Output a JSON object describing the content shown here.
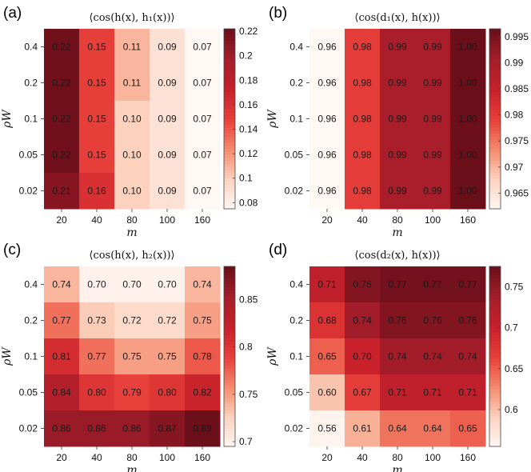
{
  "chart_data": [
    {
      "panel": "(a)",
      "type": "heatmap",
      "title": "⟨cos(h(x), h₁(x))⟩",
      "xlabel": "m",
      "ylabel": "ρW",
      "x": [
        "20",
        "40",
        "80",
        "100",
        "160"
      ],
      "y": [
        "0.4",
        "0.2",
        "0.1",
        "0.05",
        "0.02"
      ],
      "values": [
        [
          0.22,
          0.15,
          0.11,
          0.09,
          0.07
        ],
        [
          0.22,
          0.15,
          0.11,
          0.09,
          0.07
        ],
        [
          0.22,
          0.15,
          0.1,
          0.09,
          0.07
        ],
        [
          0.22,
          0.15,
          0.1,
          0.09,
          0.07
        ],
        [
          0.21,
          0.16,
          0.1,
          0.09,
          0.07
        ]
      ],
      "cell_labels": [
        [
          "0.22",
          "0.15",
          "0.11",
          "0.09",
          "0.07"
        ],
        [
          "0.22",
          "0.15",
          "0.11",
          "0.09",
          "0.07"
        ],
        [
          "0.22",
          "0.15",
          "0.10",
          "0.09",
          "0.07"
        ],
        [
          "0.22",
          "0.15",
          "0.10",
          "0.09",
          "0.07"
        ],
        [
          "0.21",
          "0.16",
          "0.10",
          "0.09",
          "0.07"
        ]
      ],
      "colorbar": {
        "range": [
          0.075,
          0.222
        ],
        "ticks": [
          "0.22",
          "0.2",
          "0.18",
          "0.16",
          "0.14",
          "0.12",
          "0.1",
          "0.08"
        ],
        "tick_values": [
          0.22,
          0.2,
          0.18,
          0.16,
          0.14,
          0.12,
          0.1,
          0.08
        ]
      }
    },
    {
      "panel": "(b)",
      "type": "heatmap",
      "title": "⟨cos(d₁(x), h(x))⟩",
      "xlabel": "m",
      "ylabel": "ρW",
      "x": [
        "20",
        "40",
        "80",
        "100",
        "160"
      ],
      "y": [
        "0.4",
        "0.2",
        "0.1",
        "0.05",
        "0.02"
      ],
      "values": [
        [
          0.96,
          0.98,
          0.99,
          0.99,
          1.0
        ],
        [
          0.96,
          0.98,
          0.99,
          0.99,
          1.0
        ],
        [
          0.96,
          0.98,
          0.99,
          0.99,
          1.0
        ],
        [
          0.96,
          0.98,
          0.99,
          0.99,
          1.0
        ],
        [
          0.96,
          0.98,
          0.99,
          0.99,
          1.0
        ]
      ],
      "cell_labels": [
        [
          "0.96",
          "0.98",
          "0.99",
          "0.99",
          "1.00"
        ],
        [
          "0.96",
          "0.98",
          "0.99",
          "0.99",
          "1.00"
        ],
        [
          "0.96",
          "0.98",
          "0.99",
          "0.99",
          "1.00"
        ],
        [
          "0.96",
          "0.98",
          "0.99",
          "0.99",
          "1.00"
        ],
        [
          "0.96",
          "0.98",
          "0.99",
          "0.99",
          "1.00"
        ]
      ],
      "colorbar": {
        "range": [
          0.962,
          0.9965
        ],
        "ticks": [
          "0.995",
          "0.99",
          "0.985",
          "0.98",
          "0.975",
          "0.97",
          "0.965"
        ],
        "tick_values": [
          0.995,
          0.99,
          0.985,
          0.98,
          0.975,
          0.97,
          0.965
        ]
      }
    },
    {
      "panel": "(c)",
      "type": "heatmap",
      "title": "⟨cos(h(x), h₂(x))⟩",
      "xlabel": "m",
      "ylabel": "ρW",
      "x": [
        "20",
        "40",
        "80",
        "100",
        "160"
      ],
      "y": [
        "0.4",
        "0.2",
        "0.1",
        "0.05",
        "0.02"
      ],
      "values": [
        [
          0.74,
          0.7,
          0.7,
          0.7,
          0.74
        ],
        [
          0.77,
          0.73,
          0.72,
          0.72,
          0.75
        ],
        [
          0.81,
          0.77,
          0.75,
          0.75,
          0.78
        ],
        [
          0.84,
          0.8,
          0.79,
          0.8,
          0.82
        ],
        [
          0.86,
          0.86,
          0.86,
          0.87,
          0.89
        ]
      ],
      "cell_labels": [
        [
          "0.74",
          "0.70",
          "0.70",
          "0.70",
          "0.74"
        ],
        [
          "0.77",
          "0.73",
          "0.72",
          "0.72",
          "0.75"
        ],
        [
          "0.81",
          "0.77",
          "0.75",
          "0.75",
          "0.78"
        ],
        [
          "0.84",
          "0.80",
          "0.79",
          "0.80",
          "0.82"
        ],
        [
          "0.86",
          "0.86",
          "0.86",
          "0.87",
          "0.89"
        ]
      ],
      "colorbar": {
        "range": [
          0.695,
          0.885
        ],
        "ticks": [
          "0.85",
          "0.8",
          "0.75",
          "0.7"
        ],
        "tick_values": [
          0.85,
          0.8,
          0.75,
          0.7
        ]
      }
    },
    {
      "panel": "(d)",
      "type": "heatmap",
      "title": "⟨cos(d₂(x), h(x))⟩",
      "xlabel": "m",
      "ylabel": "ρW",
      "x": [
        "20",
        "40",
        "80",
        "100",
        "160"
      ],
      "y": [
        "0.4",
        "0.2",
        "0.1",
        "0.05",
        "0.02"
      ],
      "values": [
        [
          0.71,
          0.76,
          0.77,
          0.77,
          0.77
        ],
        [
          0.68,
          0.74,
          0.76,
          0.76,
          0.76
        ],
        [
          0.65,
          0.7,
          0.74,
          0.74,
          0.74
        ],
        [
          0.6,
          0.67,
          0.71,
          0.71,
          0.71
        ],
        [
          0.56,
          0.61,
          0.64,
          0.64,
          0.65
        ]
      ],
      "cell_labels": [
        [
          "0.71",
          "0.76",
          "0.77",
          "0.77",
          "0.77"
        ],
        [
          "0.68",
          "0.74",
          "0.76",
          "0.76",
          "0.76"
        ],
        [
          "0.65",
          "0.70",
          "0.74",
          "0.74",
          "0.74"
        ],
        [
          "0.60",
          "0.67",
          "0.71",
          "0.71",
          "0.71"
        ],
        [
          "0.56",
          "0.61",
          "0.64",
          "0.64",
          "0.65"
        ]
      ],
      "colorbar": {
        "range": [
          0.555,
          0.775
        ],
        "ticks": [
          "0.75",
          "0.7",
          "0.65",
          "0.6"
        ],
        "tick_values": [
          0.75,
          0.7,
          0.65,
          0.6
        ]
      }
    }
  ],
  "colormap": {
    "stops": [
      "#fff8f4",
      "#fcd3c0",
      "#f48c6e",
      "#e8403a",
      "#c7212b",
      "#a51e2a",
      "#6b0f1a"
    ],
    "dark_text_color": "#1a1a1a",
    "light_text_color": "#1a1a1a"
  }
}
